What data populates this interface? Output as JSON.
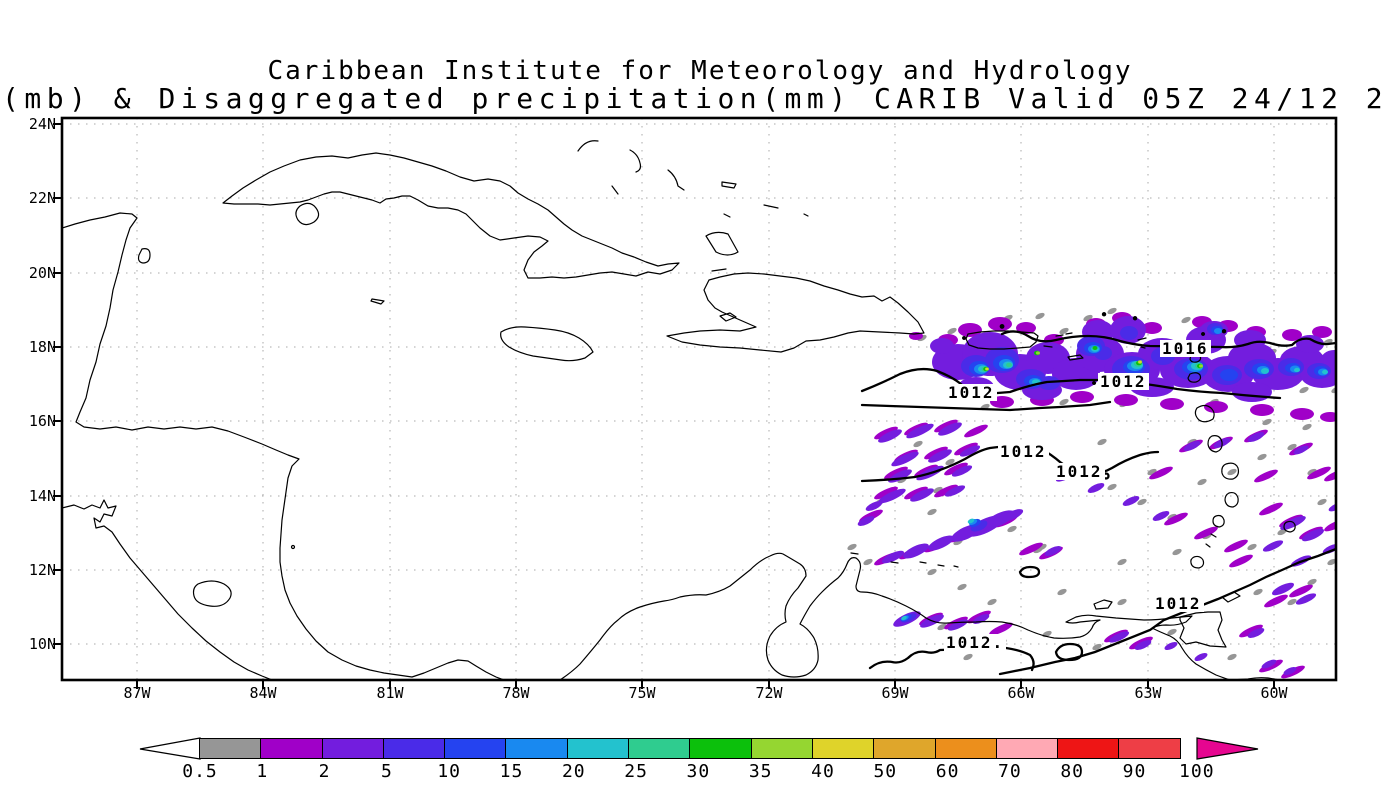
{
  "header": {
    "line1": "Caribbean Institute for Meteorology and Hydrology",
    "line2": "(mb) & Disaggregated precipitation(mm) CARIB Valid 05Z 24/12 2"
  },
  "axes": {
    "lat_labels": [
      "24N",
      "22N",
      "20N",
      "18N",
      "16N",
      "14N",
      "12N",
      "10N"
    ],
    "lon_labels": [
      "87W",
      "84W",
      "81W",
      "78W",
      "75W",
      "72W",
      "69W",
      "66W",
      "63W",
      "60W"
    ]
  },
  "map": {
    "isobar_labels": [
      {
        "text": "1016"
      },
      {
        "text": "1012"
      },
      {
        "text": "1012"
      },
      {
        "text": "1012"
      },
      {
        "text": "1012"
      },
      {
        "text": "1012"
      },
      {
        "text": "1012."
      }
    ]
  },
  "colorbar": {
    "tick_labels": [
      "0.5",
      "1",
      "2",
      "5",
      "10",
      "15",
      "20",
      "25",
      "30",
      "35",
      "40",
      "50",
      "60",
      "70",
      "80",
      "90",
      "100"
    ],
    "cells": [
      "#969696",
      "#A000C8",
      "#731DDE",
      "#4A2BE8",
      "#2543F0",
      "#1989F0",
      "#23C2CE",
      "#2FCC8F",
      "#0CC00C",
      "#95D631",
      "#DFD32A",
      "#DFA62B",
      "#EC8F1C",
      "#FFA9B4",
      "#EE1515",
      "#EE3E46"
    ],
    "underflow_arrow_color": "#FFFFFF",
    "overflow_arrow_color": "#E60690",
    "units": "mm"
  }
}
